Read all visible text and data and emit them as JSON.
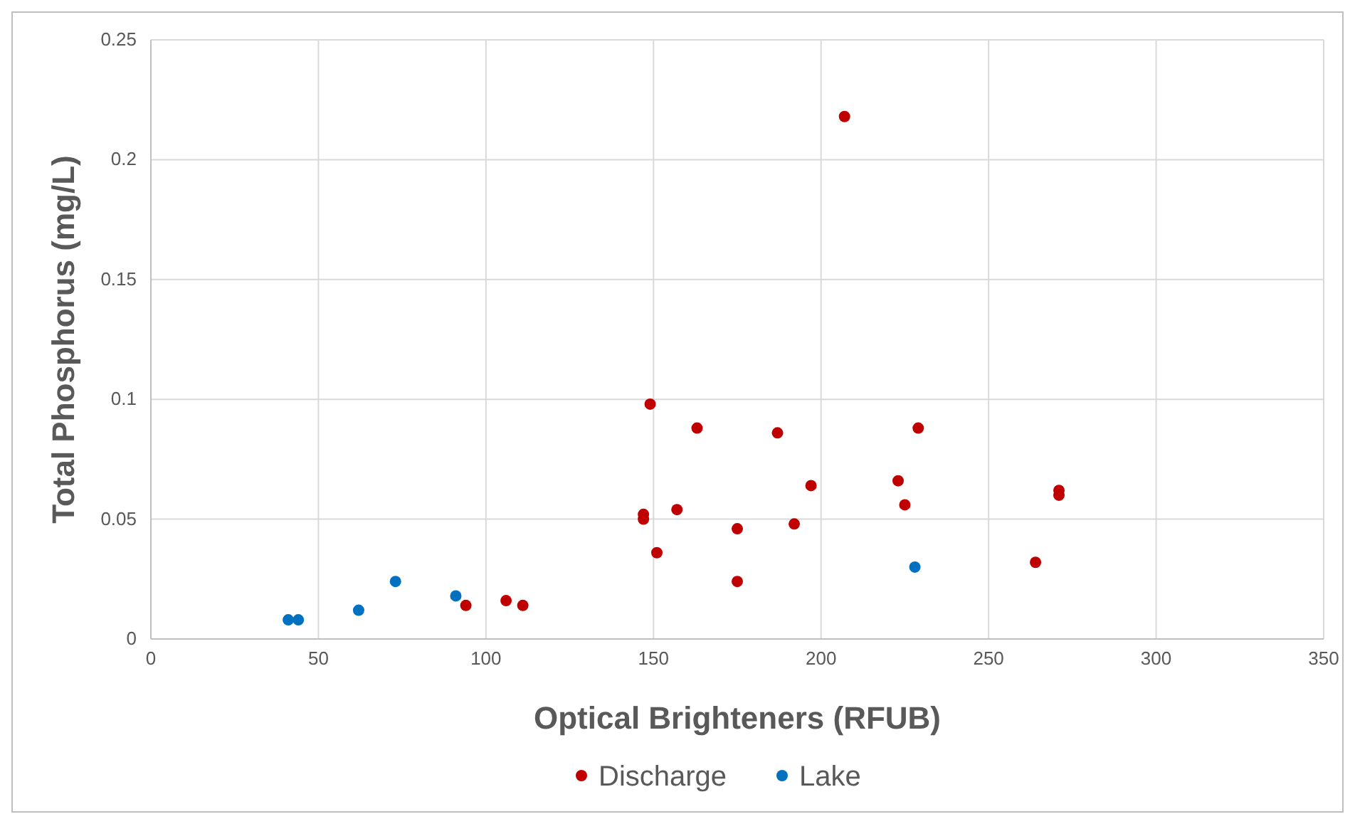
{
  "chart_data": {
    "type": "scatter",
    "xlabel": "Optical Brighteners (RFUB)",
    "ylabel": "Total Phosphorus (mg/L)",
    "xlim": [
      0,
      350
    ],
    "xticks": [
      0,
      50,
      100,
      150,
      200,
      250,
      300,
      350
    ],
    "ylim": [
      0,
      0.25
    ],
    "yticks": [
      0,
      0.05,
      0.1,
      0.15,
      0.2,
      0.25
    ],
    "grid": true,
    "legend": "bottom",
    "marker": "circle",
    "series": [
      {
        "name": "Discharge",
        "color": "#c00000",
        "x": [
          94,
          106,
          111,
          147,
          147,
          149,
          151,
          157,
          163,
          175,
          175,
          187,
          192,
          197,
          207,
          223,
          225,
          229,
          264,
          271,
          271
        ],
        "values": [
          0.014,
          0.016,
          0.014,
          0.052,
          0.05,
          0.098,
          0.036,
          0.054,
          0.088,
          0.046,
          0.024,
          0.086,
          0.048,
          0.064,
          0.218,
          0.066,
          0.056,
          0.088,
          0.032,
          0.062,
          0.06
        ]
      },
      {
        "name": "Lake",
        "color": "#0070c0",
        "x": [
          41,
          44,
          62,
          73,
          91,
          228
        ],
        "values": [
          0.008,
          0.008,
          0.012,
          0.024,
          0.018,
          0.03
        ]
      }
    ]
  }
}
